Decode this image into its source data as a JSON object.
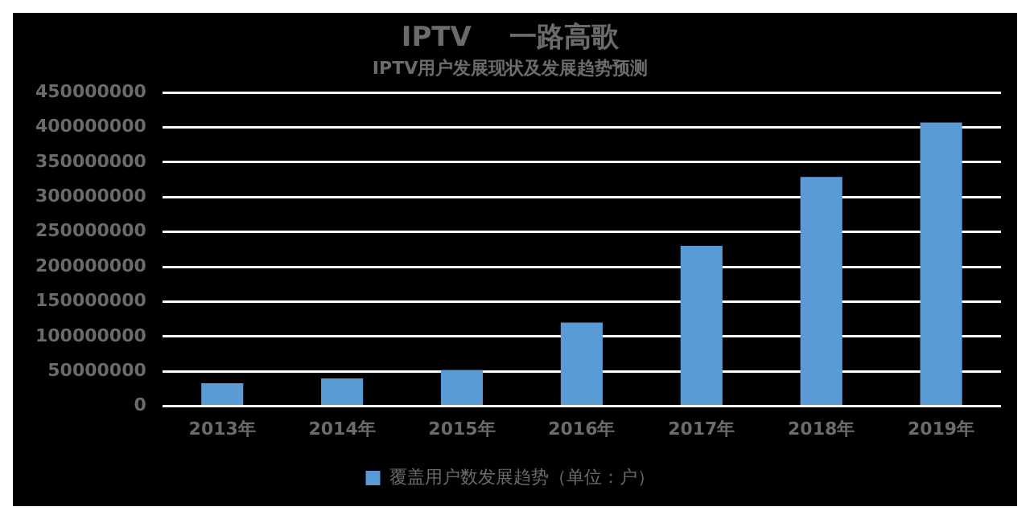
{
  "chart_data": {
    "type": "bar",
    "title": "IPTV    一路高歌",
    "subtitle": "IPTV用户发展现状及发展趋势预测",
    "categories": [
      "2013年",
      "2014年",
      "2015年",
      "2016年",
      "2017年",
      "2018年",
      "2019年"
    ],
    "series": [
      {
        "name": "覆盖用户数发展趋势（单位：户）",
        "color": "#5b9bd5",
        "values": [
          33000000,
          40000000,
          52000000,
          120000000,
          230000000,
          329000000,
          407000000
        ]
      }
    ],
    "ylim": [
      0,
      450000000
    ],
    "yticks": [
      0,
      50000000,
      100000000,
      150000000,
      200000000,
      250000000,
      300000000,
      350000000,
      400000000,
      450000000
    ],
    "grid": "y",
    "legend": "bottom"
  }
}
